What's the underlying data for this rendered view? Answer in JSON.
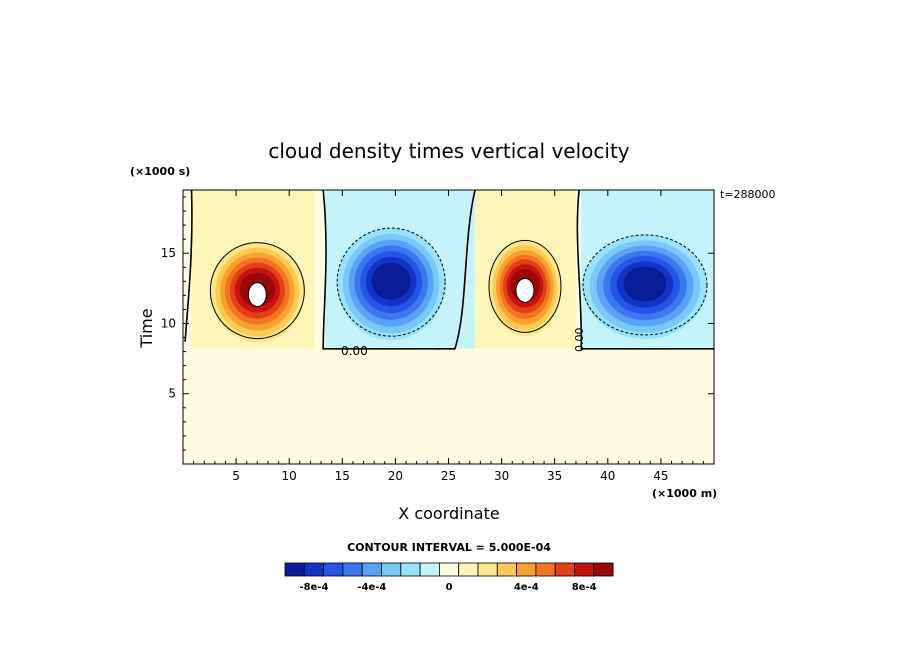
{
  "chart_data": {
    "type": "heatmap",
    "title": "cloud density times vertical velocity",
    "xlabel": "X coordinate",
    "ylabel": "Time",
    "x_unit": "(×1000 m)",
    "y_unit": "(×1000 s)",
    "time_stamp": "t=288000",
    "xlim": [
      0,
      50
    ],
    "ylim": [
      0,
      19.5
    ],
    "x_ticks": [
      5,
      10,
      15,
      20,
      25,
      30,
      35,
      40,
      45
    ],
    "y_ticks": [
      5,
      10,
      15
    ],
    "contour_interval_text": "CONTOUR INTERVAL = 5.000E-04",
    "zero_contour_label": "0.00",
    "colorbar": {
      "colors": [
        "#0a1c9a",
        "#1233c6",
        "#2555e6",
        "#3b78f0",
        "#5aa2f5",
        "#78c8f8",
        "#98e2fb",
        "#c4f3fb",
        "#fefde2",
        "#fdf6b8",
        "#fbe78a",
        "#f9cb52",
        "#f7a230",
        "#f27420",
        "#e44018",
        "#c81212",
        "#9a0808"
      ],
      "tick_labels": [
        "-8e-4",
        "-4e-4",
        "0",
        "4e-4",
        "8e-4"
      ],
      "tick_values": [
        -0.0008,
        -0.0004,
        0,
        0.0004,
        0.0008
      ]
    },
    "cells": [
      {
        "sign": "positive",
        "x_center": 7,
        "y_center": 12.5,
        "peak": 0.0011
      },
      {
        "sign": "negative",
        "x_center": 19.5,
        "y_center": 12.5,
        "peak": -0.0009
      },
      {
        "sign": "positive",
        "x_center": 32,
        "y_center": 12.5,
        "peak": 0.0011
      },
      {
        "sign": "negative",
        "x_center": 43.5,
        "y_center": 12.5,
        "peak": -0.0007
      }
    ]
  }
}
